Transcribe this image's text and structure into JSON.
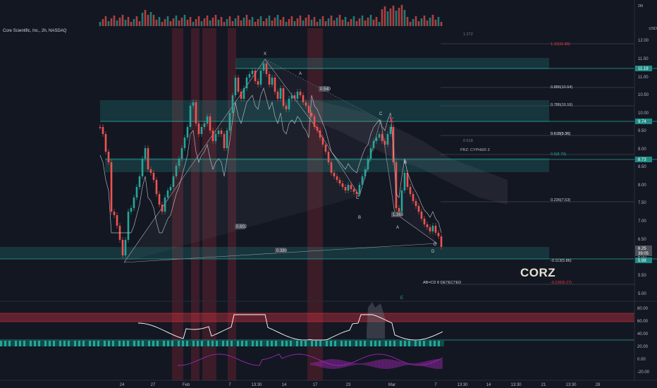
{
  "app": {
    "symbol_line": "Core Scientific, Inc., 2h, NASDAQ",
    "ticker_watermark": "CORZ",
    "currency": "USD",
    "volume_max_label": "2M"
  },
  "price_axis": {
    "ticks": [
      "12.00",
      "11.50",
      "11.00",
      "10.50",
      "10.00",
      "9.50",
      "9.00",
      "8.50",
      "8.00",
      "7.50",
      "7.00",
      "6.50",
      "6.00",
      "5.50",
      "5.00"
    ],
    "badges": [
      {
        "label": "11.19",
        "color": "#1f8b86"
      },
      {
        "label": "9.74",
        "color": "#1f8b86"
      },
      {
        "label": "8.73",
        "color": "#1f8b86"
      },
      {
        "label": "6.25",
        "color": "#4d4f58"
      },
      {
        "label": "39:05",
        "color": "#4d4f58"
      },
      {
        "label": "5.98",
        "color": "#1f8b86"
      }
    ]
  },
  "fib_levels": [
    {
      "label": "1.272",
      "color": "#787b86"
    },
    {
      "label": "1.13(11.80)",
      "color": "#f23645"
    },
    {
      "label": "0.886(10.64)",
      "color": "#d1d4dc"
    },
    {
      "label": "0.786(10.16)",
      "color": "#d1d4dc"
    },
    {
      "label": "0.618(9.36)",
      "color": "#ffffff"
    },
    {
      "label": "0.618",
      "color": "#787b86"
    },
    {
      "label": "0.5(8.79)",
      "color": "#26a69a"
    },
    {
      "label": "0.236(7.53)",
      "color": "#d1d4dc"
    },
    {
      "label": "-0.113(5.86)",
      "color": "#d1d4dc"
    },
    {
      "label": "-0.236(5.27)",
      "color": "#f23645"
    }
  ],
  "annotations": {
    "prz": "PRZ: CYPHER 3",
    "abcd": "AB=CD 8 DETECTED",
    "ratio_1": "0.540",
    "ratio_2": "0.602",
    "ratio_3": "0.389",
    "ratio_4": "1.363",
    "points": [
      "A",
      "B",
      "C",
      "D",
      "A",
      "B",
      "C",
      "D",
      "X"
    ],
    "marker_e": "E"
  },
  "oscillator_axis": {
    "ticks": [
      "80.00",
      "60.00",
      "40.00",
      "20.00",
      "0.00",
      "-20.00"
    ]
  },
  "time_axis": {
    "labels": [
      "24",
      "27",
      "Feb",
      "7",
      "13:30",
      "14",
      "17",
      "23",
      "Mar",
      "7",
      "13:30",
      "14",
      "13:30",
      "21",
      "13:30",
      "28"
    ]
  },
  "colors": {
    "background": "#131722",
    "up": "#26a69a",
    "down": "#ef5350",
    "zone": "#26a69a",
    "highlight_red": "#f23645",
    "oscillator": "#ffffff",
    "histogram": "#9c27b0"
  }
}
